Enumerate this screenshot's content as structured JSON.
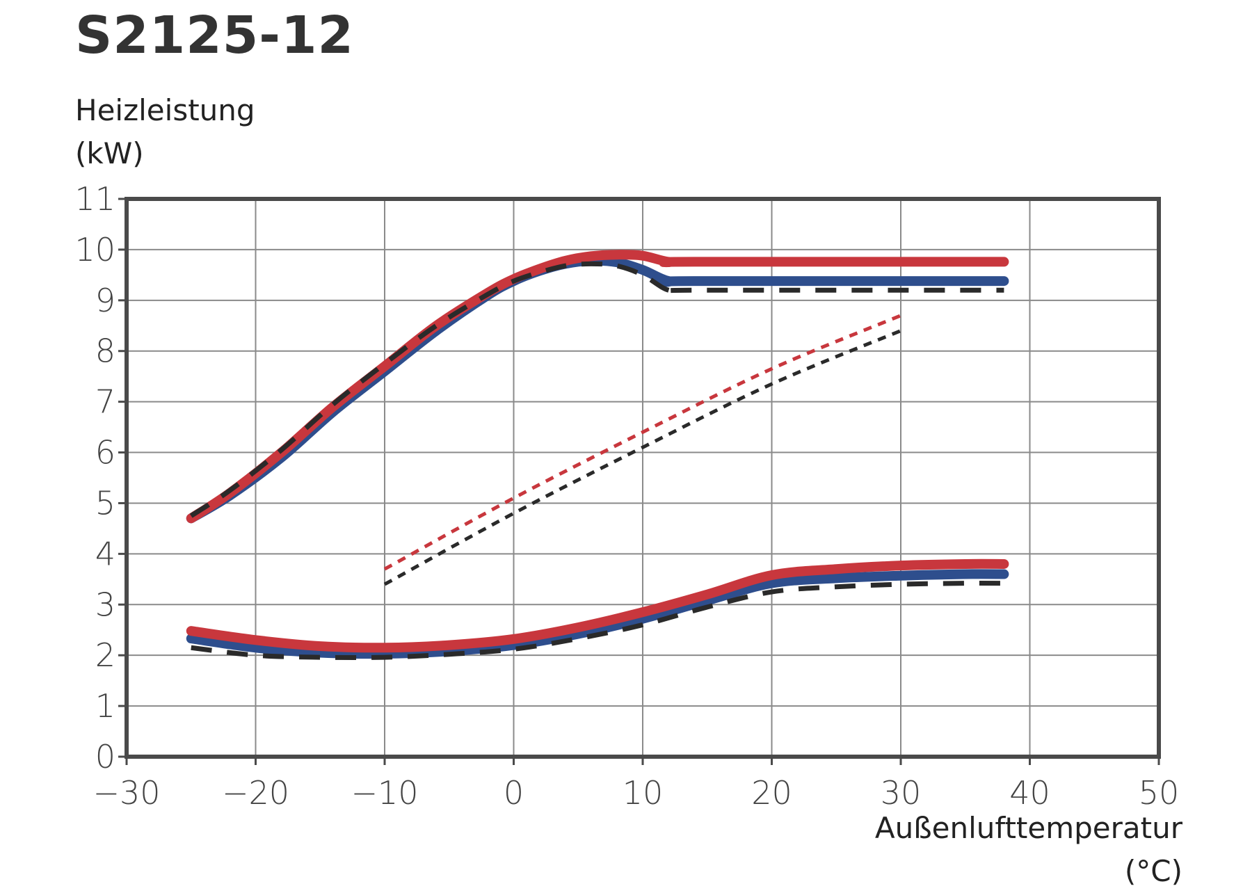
{
  "chart_data": {
    "type": "line",
    "title": "S2125-12",
    "ylabel": "Heizleistung\n(kW)",
    "xlabel": "Außenlufttemperatur\n(°C)",
    "xlim": [
      -30,
      50
    ],
    "ylim": [
      0,
      11
    ],
    "xticks": [
      "−30",
      "−20",
      "−10",
      "0",
      "10",
      "20",
      "30",
      "40",
      "50"
    ],
    "yticks": [
      "0",
      "1",
      "2",
      "3",
      "4",
      "5",
      "6",
      "7",
      "8",
      "9",
      "10",
      "11"
    ],
    "grid": true,
    "series": [
      {
        "color": "#c8373d",
        "style": "solid",
        "x": [
          -25,
          -22,
          -18,
          -14,
          -10,
          -6,
          -2,
          0,
          2,
          4,
          6,
          8,
          10,
          12,
          14,
          38
        ],
        "y": [
          4.7,
          5.2,
          6.0,
          6.9,
          7.7,
          8.5,
          9.15,
          9.42,
          9.62,
          9.78,
          9.87,
          9.9,
          9.88,
          9.76,
          9.76,
          9.76
        ]
      },
      {
        "color": "#2e4e8d",
        "style": "solid",
        "x": [
          -25,
          -22,
          -18,
          -14,
          -10,
          -6,
          -2,
          0,
          2,
          4,
          6,
          8,
          10,
          12,
          14,
          38
        ],
        "y": [
          4.7,
          5.15,
          5.9,
          6.8,
          7.6,
          8.4,
          9.1,
          9.38,
          9.58,
          9.72,
          9.78,
          9.75,
          9.6,
          9.38,
          9.38,
          9.38
        ]
      },
      {
        "color": "#2a2a2a",
        "style": "dash",
        "x": [
          -25,
          -22,
          -18,
          -14,
          -10,
          -6,
          -2,
          0,
          2,
          4,
          6,
          8,
          10,
          12,
          14,
          38
        ],
        "y": [
          4.75,
          5.25,
          6.05,
          6.95,
          7.75,
          8.5,
          9.12,
          9.38,
          9.55,
          9.68,
          9.72,
          9.68,
          9.5,
          9.2,
          9.2,
          9.2
        ]
      },
      {
        "color": "#c8373d",
        "style": "dot",
        "x": [
          -10,
          0,
          10,
          20,
          30
        ],
        "y": [
          3.7,
          5.1,
          6.4,
          7.65,
          8.7
        ]
      },
      {
        "color": "#2a2a2a",
        "style": "dot",
        "x": [
          -10,
          0,
          10,
          20,
          30
        ],
        "y": [
          3.4,
          4.8,
          6.1,
          7.35,
          8.4
        ]
      },
      {
        "color": "#c8373d",
        "style": "solid",
        "x": [
          -25,
          -20,
          -15,
          -10,
          -5,
          0,
          5,
          10,
          15,
          20,
          25,
          30,
          35,
          38
        ],
        "y": [
          2.48,
          2.3,
          2.18,
          2.15,
          2.2,
          2.32,
          2.55,
          2.85,
          3.2,
          3.58,
          3.7,
          3.77,
          3.8,
          3.8
        ]
      },
      {
        "color": "#2e4e8d",
        "style": "solid",
        "x": [
          -25,
          -20,
          -15,
          -10,
          -5,
          0,
          5,
          10,
          15,
          20,
          25,
          30,
          35,
          38
        ],
        "y": [
          2.33,
          2.15,
          2.05,
          2.03,
          2.08,
          2.2,
          2.42,
          2.72,
          3.08,
          3.42,
          3.52,
          3.57,
          3.6,
          3.6
        ]
      },
      {
        "color": "#2a2a2a",
        "style": "dash",
        "x": [
          -25,
          -20,
          -15,
          -10,
          -5,
          0,
          5,
          10,
          15,
          20,
          25,
          30,
          35,
          38
        ],
        "y": [
          2.15,
          2.0,
          1.96,
          1.96,
          2.02,
          2.12,
          2.33,
          2.6,
          2.95,
          3.25,
          3.35,
          3.4,
          3.42,
          3.42
        ]
      }
    ]
  }
}
